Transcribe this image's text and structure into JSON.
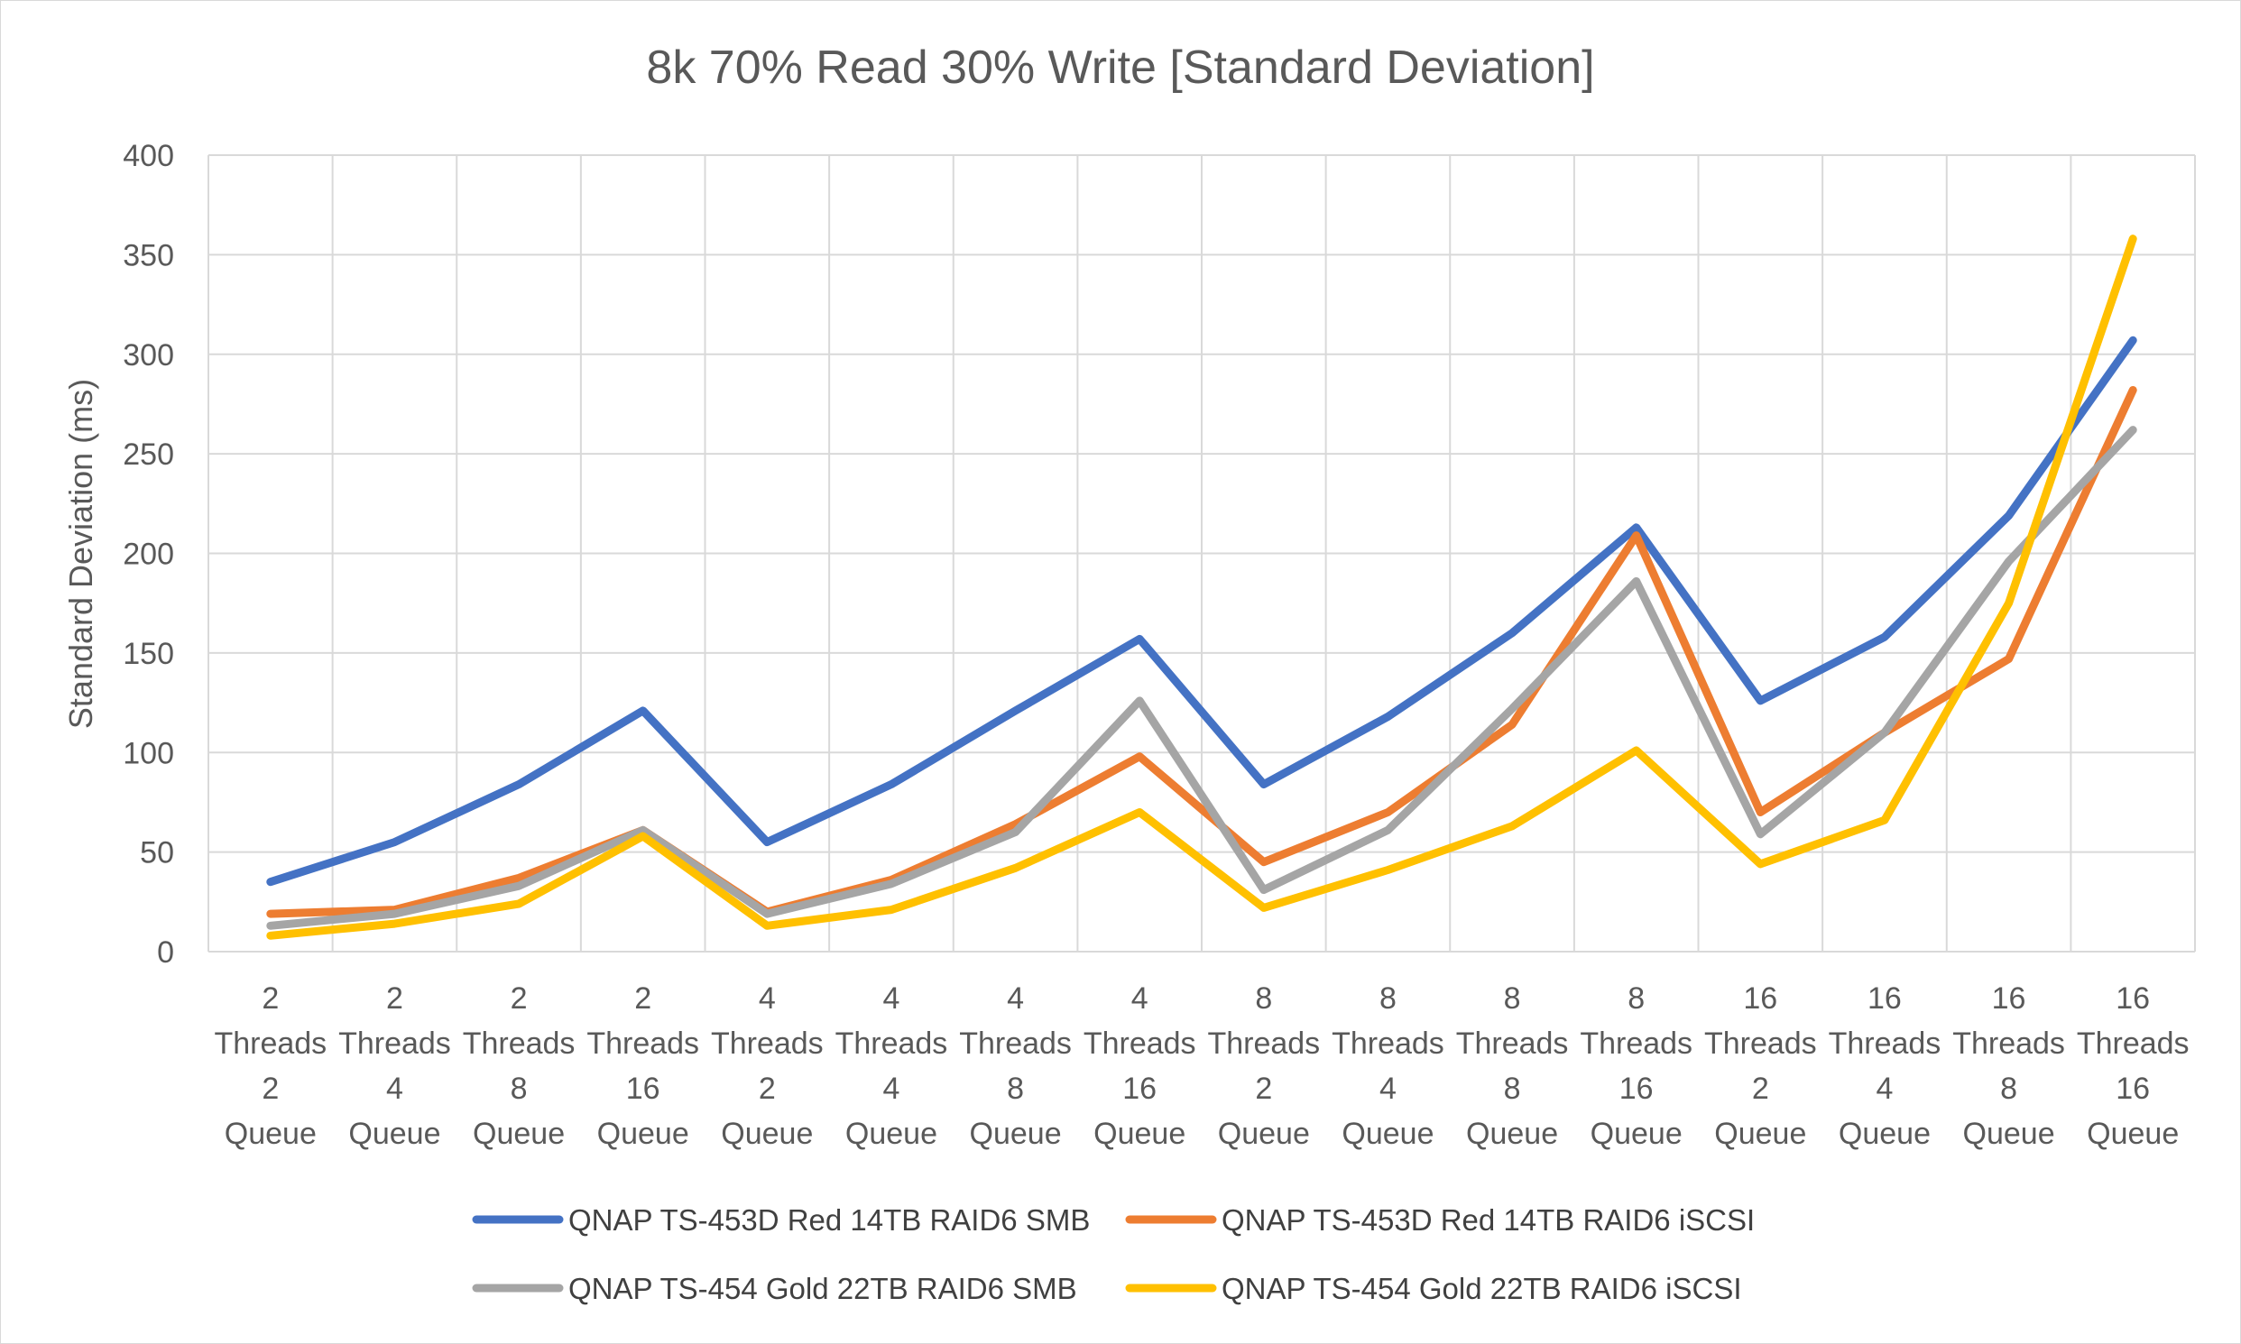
{
  "chart_data": {
    "type": "line",
    "title": "8k 70% Read 30% Write [Standard Deviation]",
    "xlabel": "",
    "ylabel": "Standard Deviation (ms)",
    "ylim": [
      0,
      400
    ],
    "yticks": [
      "0",
      "50",
      "100",
      "150",
      "200",
      "250",
      "300",
      "350",
      "400"
    ],
    "grid": true,
    "legend_position": "bottom",
    "categories": [
      [
        "2",
        "Threads",
        "2",
        "Queue"
      ],
      [
        "2",
        "Threads",
        "4",
        "Queue"
      ],
      [
        "2",
        "Threads",
        "8",
        "Queue"
      ],
      [
        "2",
        "Threads",
        "16",
        "Queue"
      ],
      [
        "4",
        "Threads",
        "2",
        "Queue"
      ],
      [
        "4",
        "Threads",
        "4",
        "Queue"
      ],
      [
        "4",
        "Threads",
        "8",
        "Queue"
      ],
      [
        "4",
        "Threads",
        "16",
        "Queue"
      ],
      [
        "8",
        "Threads",
        "2",
        "Queue"
      ],
      [
        "8",
        "Threads",
        "4",
        "Queue"
      ],
      [
        "8",
        "Threads",
        "8",
        "Queue"
      ],
      [
        "8",
        "Threads",
        "16",
        "Queue"
      ],
      [
        "16",
        "Threads",
        "2",
        "Queue"
      ],
      [
        "16",
        "Threads",
        "4",
        "Queue"
      ],
      [
        "16",
        "Threads",
        "8",
        "Queue"
      ],
      [
        "16",
        "Threads",
        "16",
        "Queue"
      ]
    ],
    "series": [
      {
        "name": "QNAP TS-453D Red 14TB RAID6 SMB",
        "color": "#4472c4",
        "values": [
          35,
          55,
          84,
          121,
          55,
          84,
          121,
          157,
          84,
          118,
          160,
          213,
          126,
          158,
          219,
          307
        ]
      },
      {
        "name": "QNAP TS-453D Red 14TB RAID6 iSCSI",
        "color": "#ed7d31",
        "values": [
          19,
          21,
          37,
          61,
          20,
          36,
          64,
          98,
          45,
          70,
          114,
          209,
          70,
          110,
          147,
          282
        ]
      },
      {
        "name": "QNAP TS-454 Gold 22TB RAID6 SMB",
        "color": "#a5a5a5",
        "values": [
          13,
          19,
          33,
          61,
          19,
          34,
          60,
          126,
          31,
          61,
          122,
          186,
          59,
          110,
          196,
          262
        ]
      },
      {
        "name": "QNAP TS-454 Gold 22TB RAID6 iSCSI",
        "color": "#ffc000",
        "values": [
          8,
          14,
          24,
          58,
          13,
          21,
          42,
          70,
          22,
          41,
          63,
          101,
          44,
          66,
          175,
          358
        ]
      }
    ]
  }
}
